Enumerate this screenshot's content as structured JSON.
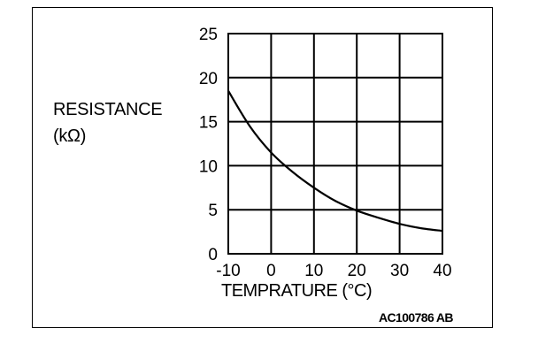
{
  "chart_data": {
    "type": "line",
    "ylabel_lines": [
      "RESISTANCE",
      "(kΩ)"
    ],
    "xlabel": "TEMPRATURE (°C)",
    "x_ticks": [
      "-10",
      "0",
      "10",
      "20",
      "30",
      "40"
    ],
    "y_ticks": [
      "0",
      "5",
      "10",
      "15",
      "20",
      "25"
    ],
    "xlim": [
      -10,
      40
    ],
    "ylim": [
      0,
      25
    ],
    "grid": true,
    "series": [
      {
        "x": [
          -10,
          -5,
          0,
          5,
          10,
          15,
          20,
          25,
          30,
          35,
          40
        ],
        "values": [
          18.5,
          14.5,
          11.5,
          9.3,
          7.5,
          6.0,
          4.9,
          4.1,
          3.4,
          2.9,
          2.6
        ]
      }
    ]
  },
  "figure_code": "AC100786 AB"
}
